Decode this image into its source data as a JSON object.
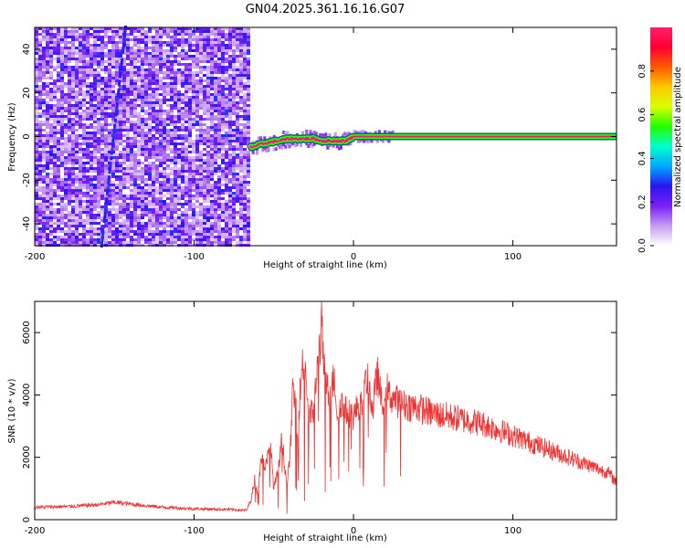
{
  "title": "GN04.2025.361.16.16.G07",
  "chart_data": [
    {
      "type": "heatmap",
      "name": "spectrogram",
      "xlabel": "Height of straight line (km)",
      "ylabel": "Frequency (Hz)",
      "xlim": [
        -200,
        165
      ],
      "ylim": [
        -50,
        50
      ],
      "xticks": [
        -200,
        -100,
        0,
        100
      ],
      "xtick_labels": [
        "-200",
        "-100",
        "0",
        "100"
      ],
      "yticks": [
        -40,
        -20,
        0,
        20,
        40
      ],
      "ytick_labels": [
        "-40",
        "-20",
        "0",
        "20",
        "40"
      ],
      "noise_region_x": [
        -200,
        -65
      ],
      "noise_level": 0.15,
      "drift_line": {
        "x": [
          -158,
          -143
        ],
        "y": [
          -50,
          50
        ],
        "amplitude": 0.25
      },
      "carrier": {
        "x_start": -65,
        "x_end": 165,
        "amplitude": 0.98,
        "points": [
          [
            -65,
            -5
          ],
          [
            -55,
            -3
          ],
          [
            -40,
            -1
          ],
          [
            -25,
            -1
          ],
          [
            -20,
            -2
          ],
          [
            -5,
            -2
          ],
          [
            0,
            0
          ],
          [
            165,
            0
          ]
        ]
      },
      "colorbar": {
        "label": "Normalized spectral amplitude",
        "range": [
          0.0,
          1.0
        ],
        "ticks": [
          0.0,
          0.2,
          0.4,
          0.6,
          0.8
        ],
        "tick_labels": [
          "0.0",
          "0.2",
          "0.4",
          "0.6",
          "0.8"
        ],
        "colors": [
          "#ffffff",
          "#c79cf0",
          "#7a1ff5",
          "#2a16f0",
          "#00a8ff",
          "#00ffcc",
          "#22ff00",
          "#d8ff00",
          "#ffc800",
          "#ff5a00",
          "#ff0030",
          "#ff1f6a"
        ]
      }
    },
    {
      "type": "line",
      "name": "snr",
      "xlabel": "Height of straight line (km)",
      "ylabel": "SNR (10 * v/v)",
      "xlim": [
        -200,
        165
      ],
      "ylim": [
        0,
        7000
      ],
      "xticks": [
        -200,
        -100,
        0,
        100
      ],
      "xtick_labels": [
        "-200",
        "-100",
        "0",
        "100"
      ],
      "yticks": [
        0,
        2000,
        4000,
        6000
      ],
      "ytick_labels": [
        "0",
        "2000",
        "4000",
        "6000"
      ],
      "color": "#f03232",
      "x": [
        -200,
        -180,
        -160,
        -150,
        -140,
        -120,
        -100,
        -80,
        -67,
        -64,
        -62,
        -60,
        -58,
        -55,
        -52,
        -50,
        -47,
        -45,
        -42,
        -40,
        -38,
        -35,
        -32,
        -30,
        -28,
        -25,
        -22,
        -20,
        -18,
        -15,
        -12,
        -10,
        -8,
        -5,
        -2,
        0,
        3,
        6,
        8,
        10,
        12,
        15,
        18,
        20,
        22,
        25,
        30,
        40,
        50,
        60,
        70,
        80,
        90,
        100,
        110,
        120,
        130,
        140,
        150,
        160,
        165
      ],
      "y": [
        400,
        420,
        480,
        560,
        500,
        400,
        350,
        330,
        300,
        700,
        1300,
        800,
        2000,
        1700,
        2400,
        1000,
        1600,
        2600,
        1200,
        1800,
        4300,
        3000,
        5100,
        4800,
        3300,
        3500,
        5200,
        6200,
        4500,
        3900,
        4600,
        3300,
        3800,
        3500,
        3400,
        3300,
        3700,
        3600,
        4600,
        4200,
        3500,
        4700,
        3600,
        4400,
        4000,
        3900,
        3700,
        3600,
        3400,
        3300,
        3200,
        3100,
        2900,
        2700,
        2500,
        2300,
        2100,
        1900,
        1700,
        1500,
        1200
      ],
      "noise_amplitude": 0.14
    }
  ]
}
